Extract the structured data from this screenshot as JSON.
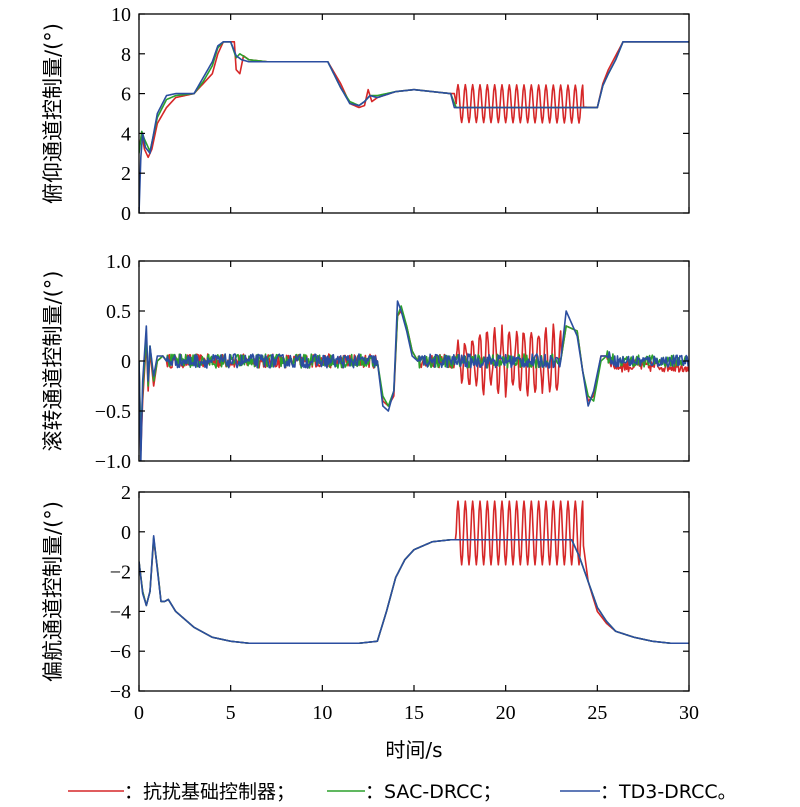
{
  "chart_data": [
    {
      "type": "line",
      "ylabel": "俯仰通道控制量/(°)",
      "xlim": [
        0,
        30
      ],
      "ylim": [
        0,
        10
      ],
      "yticks": [
        0,
        2,
        4,
        6,
        8,
        10
      ],
      "xticks": [
        0,
        5,
        10,
        15,
        20,
        25,
        30
      ],
      "series": [
        {
          "name": "抗扰基础控制器",
          "color": "#d62728",
          "x": [
            0,
            0.15,
            0.3,
            0.5,
            0.7,
            1.0,
            1.5,
            2.0,
            3.0,
            3.5,
            4.0,
            4.3,
            4.6,
            5.0,
            5.2,
            5.3,
            5.5,
            5.7,
            6.0,
            7.0,
            10.0,
            10.3,
            11.0,
            11.5,
            12.0,
            12.3,
            12.5,
            12.7,
            13.0,
            14.0,
            15.0,
            16.0,
            17.0,
            17.2,
            17.3,
            25.0,
            25.3,
            25.6,
            26.0,
            26.4,
            27.0,
            30.0
          ],
          "y": [
            3.2,
            4.0,
            3.2,
            2.8,
            3.2,
            4.5,
            5.3,
            5.8,
            6.0,
            6.5,
            7.0,
            8.0,
            8.6,
            8.6,
            8.6,
            7.2,
            7.0,
            7.9,
            7.7,
            7.6,
            7.6,
            7.6,
            6.5,
            5.5,
            5.3,
            5.4,
            6.2,
            5.6,
            5.8,
            6.1,
            6.2,
            6.1,
            6.0,
            6.0,
            5.5,
            5.3,
            6.5,
            7.2,
            7.9,
            8.6,
            8.6,
            8.6
          ]
        },
        {
          "name": "SAC-DRCC",
          "color": "#2ca02c",
          "x": [
            0,
            0.15,
            0.3,
            0.6,
            1.0,
            1.5,
            2.0,
            3.0,
            3.5,
            4.0,
            4.3,
            4.6,
            5.0,
            5.3,
            5.5,
            6.0,
            7.0,
            10.0,
            10.3,
            11.0,
            11.5,
            12.0,
            12.3,
            12.6,
            13.0,
            14.0,
            15.0,
            16.0,
            17.0,
            17.3,
            25.0,
            25.3,
            25.6,
            26.0,
            26.4,
            27.0,
            30.0
          ],
          "y": [
            3.0,
            4.1,
            3.7,
            3.1,
            4.8,
            5.7,
            5.9,
            6.0,
            6.6,
            7.4,
            8.3,
            8.6,
            8.6,
            7.8,
            8.0,
            7.7,
            7.6,
            7.6,
            7.6,
            6.3,
            5.6,
            5.4,
            5.6,
            5.9,
            5.9,
            6.1,
            6.2,
            6.1,
            6.0,
            5.3,
            5.3,
            6.4,
            7.0,
            7.7,
            8.6,
            8.6,
            8.6
          ]
        },
        {
          "name": "TD3-DRCC",
          "color": "#2b4ea0",
          "x": [
            0,
            0.1,
            0.2,
            0.35,
            0.6,
            1.0,
            1.5,
            2.0,
            3.0,
            3.5,
            4.0,
            4.3,
            4.6,
            5.0,
            5.3,
            5.6,
            6.0,
            7.0,
            10.0,
            10.3,
            11.0,
            11.5,
            12.0,
            12.3,
            12.6,
            13.0,
            14.0,
            15.0,
            16.0,
            17.0,
            17.2,
            17.5,
            25.0,
            25.3,
            25.6,
            26.0,
            26.4,
            27.0,
            30.0
          ],
          "y": [
            0,
            2.8,
            4.0,
            3.3,
            3.0,
            5.0,
            5.9,
            6.0,
            6.0,
            6.8,
            7.6,
            8.4,
            8.6,
            8.6,
            7.9,
            7.7,
            7.6,
            7.6,
            7.6,
            7.6,
            6.3,
            5.5,
            5.4,
            5.6,
            5.9,
            5.8,
            6.1,
            6.2,
            6.1,
            6.0,
            5.3,
            5.3,
            5.3,
            6.4,
            7.0,
            7.7,
            8.6,
            8.6,
            8.6
          ]
        }
      ],
      "oscillation": {
        "series": 0,
        "x_start": 17.3,
        "x_end": 24.2,
        "period": 0.4,
        "center": 5.5,
        "amplitude": 0.95
      }
    },
    {
      "type": "line",
      "ylabel": "滚转通道控制量/(°)",
      "xlim": [
        0,
        30
      ],
      "ylim": [
        -1.0,
        1.0
      ],
      "yticks": [
        -1.0,
        -0.5,
        0,
        0.5,
        1.0
      ],
      "ytick_labels": [
        "−1.0",
        "−0.5",
        "0",
        "0.5",
        "1.0"
      ],
      "xticks": [
        0,
        5,
        10,
        15,
        20,
        25,
        30
      ],
      "series": [
        {
          "name": "抗扰基础控制器",
          "color": "#d62728",
          "x": [
            0,
            0.1,
            0.2,
            0.4,
            0.5,
            0.6,
            0.8,
            1.0,
            1.3,
            1.5,
            13.0,
            13.3,
            13.6,
            13.9,
            14.1,
            14.3,
            14.6,
            14.9,
            15.2,
            17.0,
            17.3,
            23.0,
            23.3,
            23.9,
            24.2,
            24.5,
            24.8,
            25.2,
            25.5,
            26.0,
            30.0
          ],
          "y": [
            0,
            -0.9,
            -0.4,
            0.2,
            -0.3,
            0.1,
            -0.25,
            0.0,
            0.05,
            0.0,
            0.0,
            -0.4,
            -0.45,
            -0.35,
            0.45,
            0.5,
            0.35,
            0.1,
            0.0,
            0.0,
            0.0,
            0.0,
            0.35,
            0.3,
            -0.1,
            -0.4,
            -0.35,
            0.05,
            0.05,
            -0.05,
            -0.05
          ]
        },
        {
          "name": "SAC-DRCC",
          "color": "#2ca02c",
          "x": [
            0,
            0.1,
            0.2,
            0.4,
            0.5,
            0.6,
            0.8,
            1.0,
            1.3,
            1.5,
            13.0,
            13.3,
            13.6,
            13.9,
            14.1,
            14.3,
            14.6,
            14.9,
            15.2,
            17.0,
            17.3,
            23.0,
            23.3,
            23.9,
            24.2,
            24.5,
            24.8,
            25.2,
            25.5,
            26.0,
            30.0
          ],
          "y": [
            0,
            -0.8,
            -0.3,
            0.25,
            -0.25,
            0.15,
            -0.2,
            0.0,
            0.05,
            0.0,
            0.0,
            -0.35,
            -0.45,
            -0.3,
            0.45,
            0.55,
            0.35,
            0.1,
            0.0,
            0.0,
            0.0,
            0.0,
            0.35,
            0.3,
            -0.1,
            -0.35,
            -0.4,
            0.0,
            0.05,
            0.0,
            0.0
          ]
        },
        {
          "name": "TD3-DRCC",
          "color": "#2b4ea0",
          "x": [
            0,
            0.1,
            0.2,
            0.4,
            0.5,
            0.6,
            0.8,
            1.0,
            1.3,
            1.5,
            13.0,
            13.3,
            13.6,
            13.9,
            14.1,
            14.3,
            14.6,
            14.9,
            15.2,
            17.0,
            17.3,
            23.0,
            23.3,
            23.9,
            24.2,
            24.5,
            24.8,
            25.2,
            25.5,
            26.0,
            30.0
          ],
          "y": [
            0,
            -1.0,
            -0.2,
            0.35,
            -0.2,
            0.15,
            -0.15,
            0.05,
            0.05,
            0.0,
            0.0,
            -0.45,
            -0.5,
            -0.3,
            0.6,
            0.5,
            0.3,
            0.05,
            0.0,
            0.0,
            0.0,
            0.0,
            0.5,
            0.25,
            -0.1,
            -0.45,
            -0.3,
            0.05,
            0.05,
            0.0,
            0.0
          ]
        }
      ],
      "oscillation": {
        "series": 0,
        "x_start": 17.3,
        "x_end": 23.0,
        "period": 0.4,
        "center": 0.0,
        "amplitude": 0.3
      }
    },
    {
      "type": "line",
      "ylabel": "偏航通道控制量/(°)",
      "xlim": [
        0,
        30
      ],
      "ylim": [
        -8,
        2
      ],
      "yticks": [
        -8,
        -6,
        -4,
        -2,
        0,
        2
      ],
      "ytick_labels": [
        "−8",
        "−6",
        "−4",
        "−2",
        "0",
        "2"
      ],
      "xticks": [
        0,
        5,
        10,
        15,
        20,
        25,
        30
      ],
      "xlabel": "时间/s",
      "series": [
        {
          "name": "抗扰基础控制器",
          "color": "#d62728",
          "x": [
            0,
            0.2,
            0.4,
            0.6,
            0.8,
            1.0,
            1.2,
            1.4,
            1.6,
            2.0,
            3.0,
            4.0,
            5.0,
            6.0,
            8.0,
            10.0,
            12.0,
            13.0,
            13.5,
            14.0,
            14.5,
            15.0,
            16.0,
            17.0,
            17.3,
            24.2,
            24.5,
            25.0,
            25.5,
            26.0,
            27.0,
            28.0,
            29.0,
            30.0
          ],
          "y": [
            -1.5,
            -3.0,
            -3.7,
            -3.0,
            -0.4,
            -1.8,
            -3.5,
            -3.5,
            -3.4,
            -4.0,
            -4.8,
            -5.3,
            -5.5,
            -5.6,
            -5.6,
            -5.6,
            -5.6,
            -5.5,
            -4.0,
            -2.3,
            -1.4,
            -0.9,
            -0.5,
            -0.4,
            -0.4,
            -0.4,
            -2.5,
            -4.0,
            -4.6,
            -5.0,
            -5.3,
            -5.5,
            -5.6,
            -5.6
          ]
        },
        {
          "name": "SAC-DRCC",
          "color": "#2ca02c",
          "x": [
            0,
            0.2,
            0.4,
            0.6,
            0.8,
            1.0,
            1.2,
            1.4,
            1.6,
            2.0,
            3.0,
            4.0,
            5.0,
            6.0,
            8.0,
            10.0,
            12.0,
            13.0,
            13.5,
            14.0,
            14.5,
            15.0,
            16.0,
            17.0,
            23.6,
            24.0,
            24.5,
            25.0,
            25.5,
            26.0,
            27.0,
            28.0,
            29.0,
            30.0
          ],
          "y": [
            -1.5,
            -3.0,
            -3.7,
            -3.0,
            -0.3,
            -1.8,
            -3.5,
            -3.5,
            -3.4,
            -4.0,
            -4.8,
            -5.3,
            -5.5,
            -5.6,
            -5.6,
            -5.6,
            -5.6,
            -5.5,
            -4.0,
            -2.3,
            -1.4,
            -0.9,
            -0.5,
            -0.4,
            -0.4,
            -1.2,
            -2.5,
            -3.8,
            -4.5,
            -5.0,
            -5.3,
            -5.5,
            -5.6,
            -5.6
          ]
        },
        {
          "name": "TD3-DRCC",
          "color": "#2b4ea0",
          "x": [
            0,
            0.2,
            0.4,
            0.6,
            0.8,
            1.0,
            1.2,
            1.4,
            1.6,
            2.0,
            3.0,
            4.0,
            5.0,
            6.0,
            8.0,
            10.0,
            12.0,
            13.0,
            13.5,
            14.0,
            14.5,
            15.0,
            16.0,
            17.0,
            23.6,
            24.0,
            24.5,
            25.0,
            25.5,
            26.0,
            27.0,
            28.0,
            29.0,
            30.0
          ],
          "y": [
            -1.5,
            -3.1,
            -3.7,
            -3.0,
            -0.2,
            -1.9,
            -3.5,
            -3.5,
            -3.4,
            -4.0,
            -4.8,
            -5.3,
            -5.5,
            -5.6,
            -5.6,
            -5.6,
            -5.6,
            -5.5,
            -4.0,
            -2.3,
            -1.4,
            -0.9,
            -0.5,
            -0.4,
            -0.4,
            -1.2,
            -2.5,
            -3.8,
            -4.5,
            -5.0,
            -5.3,
            -5.5,
            -5.6,
            -5.6
          ]
        }
      ],
      "oscillation": {
        "series": 0,
        "x_start": 17.3,
        "x_end": 24.2,
        "period": 0.4,
        "center": 0.0,
        "amplitude": 1.6
      }
    }
  ],
  "legend": {
    "placement": "bottom",
    "entries": [
      {
        "label": "：抗扰基础控制器；",
        "color": "#d62728"
      },
      {
        "label": "：SAC-DRCC；",
        "color": "#2ca02c"
      },
      {
        "label": "：TD3-DRCC。",
        "color": "#2b4ea0"
      }
    ]
  }
}
